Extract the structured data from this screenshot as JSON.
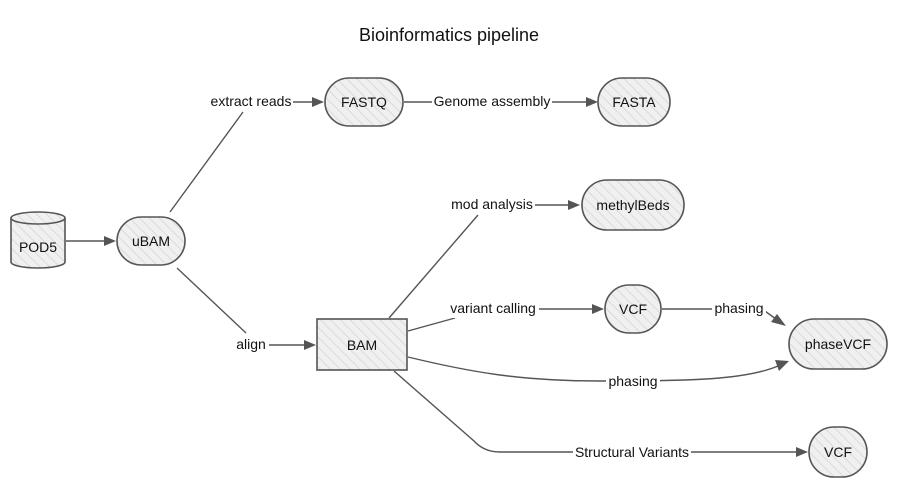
{
  "diagram": {
    "title": "Bioinformatics pipeline",
    "nodes": {
      "pod5": "POD5",
      "ubam": "uBAM",
      "fastq": "FASTQ",
      "fasta": "FASTA",
      "methylbeds": "methylBeds",
      "bam": "BAM",
      "vcf": "VCF",
      "phasevcf": "phaseVCF",
      "vcf_sv": "VCF"
    },
    "edges": {
      "pod5_ubam": "",
      "extract_reads": "extract reads",
      "genome_assembly": "Genome assembly",
      "align": "align",
      "mod_analysis": "mod analysis",
      "variant_calling": "variant calling",
      "phasing_vcf": "phasing",
      "phasing_bam": "phasing",
      "structural_variants": "Structural Variants"
    }
  }
}
